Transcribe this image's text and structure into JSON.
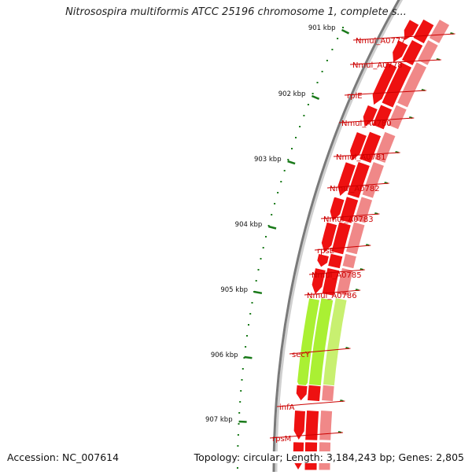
{
  "title": "Nitrosospira multiformis ATCC 25196 chromosome 1, complete s...",
  "footer": {
    "accession": "Accession: NC_007614",
    "summary": "Topology: circular; Length: 3,184,243 bp; Genes: 2,805"
  },
  "scale_labels": [
    "901 kbp",
    "902 kbp",
    "903 kbp",
    "904 kbp",
    "905 kbp",
    "906 kbp",
    "907 kbp"
  ],
  "gene_labels": [
    "Nmul_A0777",
    "Nmul_A0778",
    "rplE",
    "Nmul_A0780",
    "Nmul_A0781",
    "Nmul_A0782",
    "Nmul_A0783",
    "rpsE",
    "Nmul_A0785",
    "Nmul_A0786",
    "secY",
    "infA",
    "rpsM"
  ],
  "colors": {
    "gene": "#ee1111",
    "gene_highlight": "#aaf033",
    "gene_track": "#f08888",
    "label": "#cc0000",
    "tick": "#1a7a1a",
    "backbone": "#7a7a7a"
  }
}
